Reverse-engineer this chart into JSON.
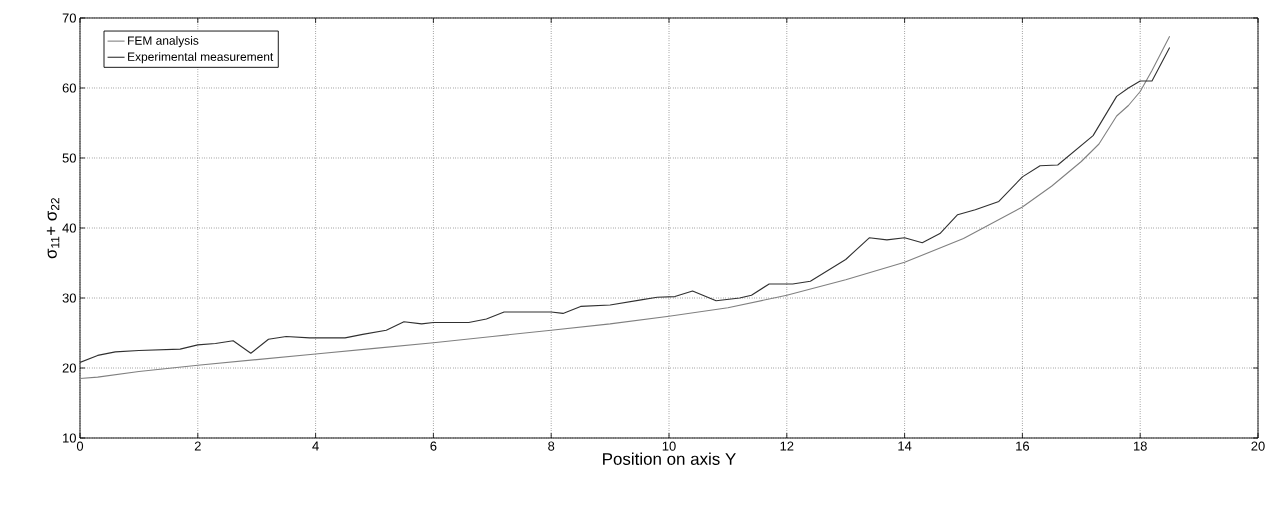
{
  "chart_data": {
    "type": "line",
    "xlabel": "Position on axis Y",
    "ylabel": "σ$_{11}$+ σ$_{22}$",
    "xlim": [
      0,
      20
    ],
    "ylim": [
      10,
      70
    ],
    "xticks": [
      0,
      2,
      4,
      6,
      8,
      10,
      12,
      14,
      16,
      18,
      20
    ],
    "yticks": [
      10,
      20,
      30,
      40,
      50,
      60,
      70
    ],
    "grid": true,
    "legend": "top left",
    "series": [
      {
        "name": "FEM analysis",
        "color": "#808080",
        "x": [
          0,
          0.3,
          1,
          2,
          3,
          4,
          5,
          6,
          7,
          8,
          9,
          10,
          11,
          12,
          13,
          14,
          15,
          16,
          16.5,
          17,
          17.3,
          17.6,
          17.8,
          18,
          18.2,
          18.5
        ],
        "values": [
          18.5,
          18.7,
          19.5,
          20.4,
          21.2,
          22,
          22.8,
          23.6,
          24.5,
          25.4,
          26.3,
          27.4,
          28.6,
          30.4,
          32.6,
          35.1,
          38.5,
          43,
          46,
          49.5,
          52,
          56,
          57.5,
          59.5,
          62.5,
          67.4
        ]
      },
      {
        "name": "Experimental measurement",
        "color": "#303030",
        "x": [
          0,
          0.3,
          0.6,
          1.0,
          1.7,
          2.0,
          2.3,
          2.6,
          2.9,
          3.2,
          3.5,
          3.9,
          4.5,
          4.8,
          5.2,
          5.5,
          5.8,
          6.0,
          6.6,
          6.9,
          7.2,
          8.0,
          8.2,
          8.5,
          9.0,
          9.5,
          9.8,
          10.1,
          10.4,
          10.8,
          11.2,
          11.4,
          11.7,
          12.1,
          12.4,
          13.0,
          13.4,
          13.7,
          14.0,
          14.3,
          14.6,
          14.9,
          15.2,
          15.6,
          16.0,
          16.3,
          16.6,
          17.2,
          17.6,
          17.8,
          18.0,
          18.2,
          18.5
        ],
        "values": [
          20.8,
          21.8,
          22.3,
          22.5,
          22.7,
          23.3,
          23.5,
          23.9,
          22.1,
          24.1,
          24.5,
          24.3,
          24.3,
          24.8,
          25.4,
          26.6,
          26.3,
          26.5,
          26.5,
          27,
          28,
          28,
          27.8,
          28.8,
          29,
          29.7,
          30.1,
          30.2,
          31,
          29.6,
          30,
          30.4,
          32,
          32,
          32.4,
          35.5,
          38.6,
          38.3,
          38.6,
          37.9,
          39.2,
          41.9,
          42.6,
          43.8,
          47.3,
          48.9,
          49,
          53.2,
          58.8,
          60,
          61,
          61,
          65.8
        ]
      }
    ]
  }
}
